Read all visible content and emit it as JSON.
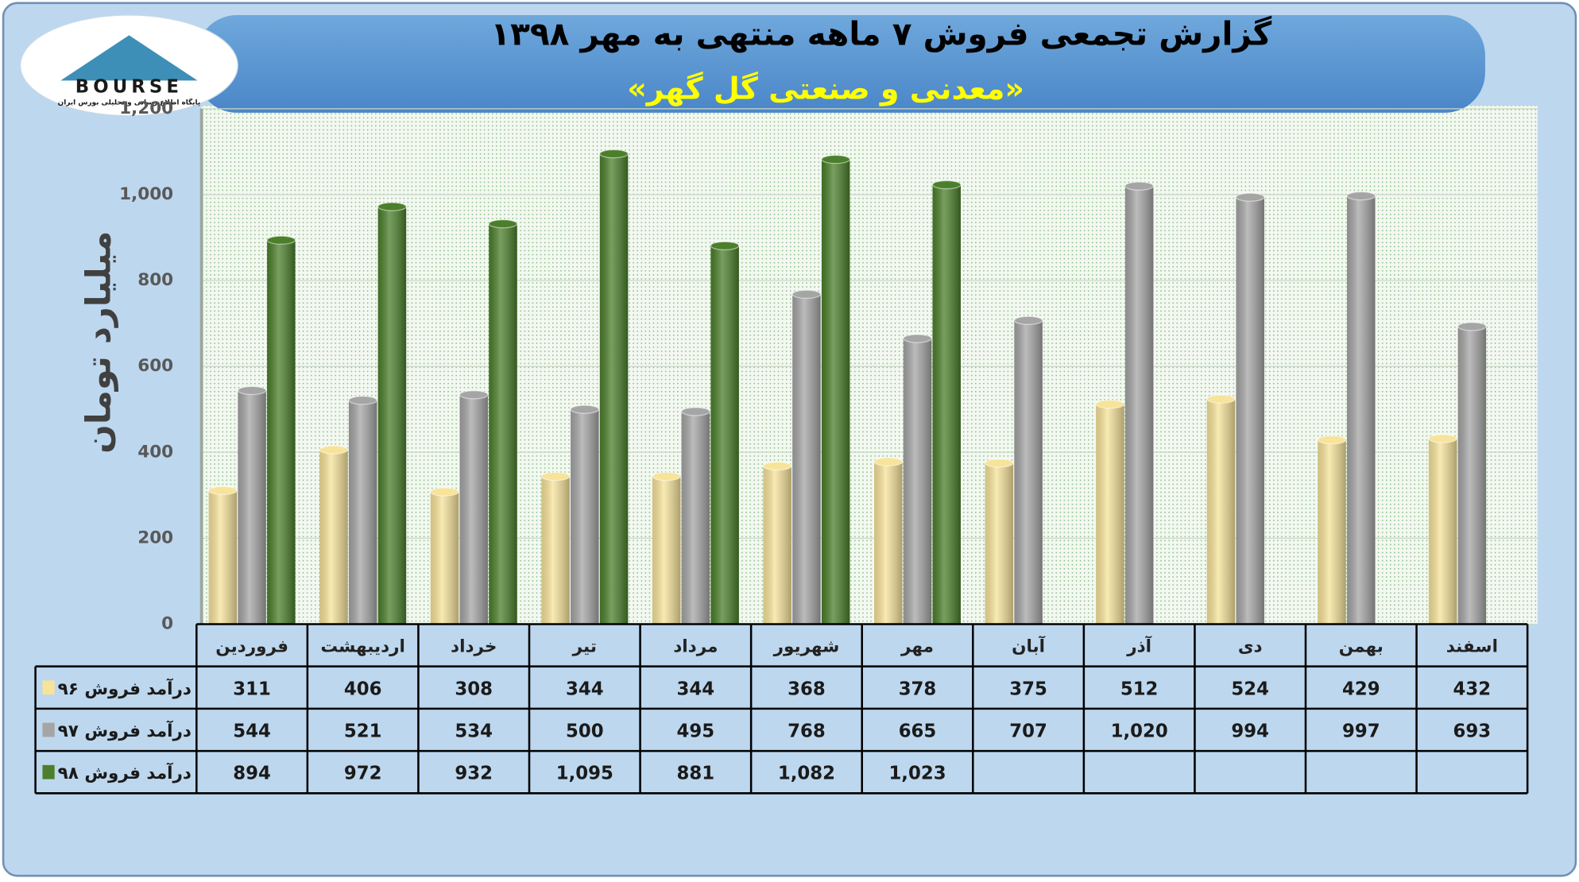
{
  "logo": {
    "name": "BOURSE",
    "tagline": "پایگاه اطلاع رسانی و تحلیلی بورس ایران"
  },
  "chart_data": {
    "type": "bar",
    "title": "گزارش تجمعی فروش ۷ ماهه منتهی به مهر ۱۳۹۸",
    "subtitle": "«معدنی و صنعتی گل گهر»",
    "y_label": "میلیارد تومان",
    "categories": [
      "فروردین",
      "اردیبهشت",
      "خرداد",
      "تیر",
      "مرداد",
      "شهریور",
      "مهر",
      "آبان",
      "آذر",
      "دی",
      "بهمن",
      "اسفند"
    ],
    "series": [
      {
        "name": "درآمد فروش ۹۶",
        "color": "#f7e39a",
        "values": [
          311,
          406,
          308,
          344,
          344,
          368,
          378,
          375,
          512,
          524,
          429,
          432
        ],
        "value_labels": [
          "311",
          "406",
          "308",
          "344",
          "344",
          "368",
          "378",
          "375",
          "512",
          "524",
          "429",
          "432"
        ]
      },
      {
        "name": "درآمد فروش ۹۷",
        "color": "#a5a5a5",
        "values": [
          544,
          521,
          534,
          500,
          495,
          768,
          665,
          707,
          1020,
          994,
          997,
          693
        ],
        "value_labels": [
          "544",
          "521",
          "534",
          "500",
          "495",
          "768",
          "665",
          "707",
          "1,020",
          "994",
          "997",
          "693"
        ]
      },
      {
        "name": "درآمد فروش ۹۸",
        "color": "#4b7f2b",
        "values": [
          894,
          972,
          932,
          1095,
          881,
          1082,
          1023,
          null,
          null,
          null,
          null,
          null
        ],
        "value_labels": [
          "894",
          "972",
          "932",
          "1,095",
          "881",
          "1,082",
          "1,023",
          null,
          null,
          null,
          null,
          null
        ]
      }
    ],
    "ylim": [
      0,
      1200
    ],
    "yticks": [
      0,
      200,
      400,
      600,
      800,
      {
        "value": 1000,
        "label": "1,000"
      },
      {
        "value": 1200,
        "label": "1,200"
      }
    ],
    "grid": true
  }
}
